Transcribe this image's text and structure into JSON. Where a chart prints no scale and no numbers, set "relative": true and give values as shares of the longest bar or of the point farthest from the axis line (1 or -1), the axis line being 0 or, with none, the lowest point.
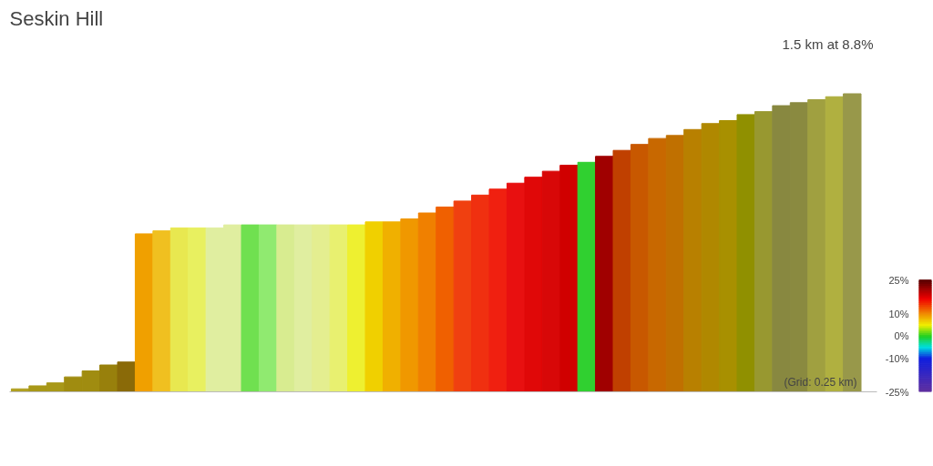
{
  "chart_data": {
    "type": "bar",
    "title": "Seskin Hill",
    "subtitle": "1.5 km at 8.8%",
    "relative": true,
    "categories": [
      null,
      null,
      null,
      null,
      null,
      null,
      null,
      null,
      null,
      null,
      null,
      null,
      null,
      null,
      null,
      null,
      null,
      null,
      null,
      null,
      null,
      null,
      null,
      null,
      null,
      null,
      null,
      null,
      null,
      null,
      null,
      null,
      null,
      null,
      null,
      null,
      null,
      null,
      null,
      null,
      null,
      null,
      null,
      null,
      null,
      null,
      null,
      null
    ],
    "values": [
      0.01,
      0.02,
      0.03,
      0.05,
      0.07,
      0.09,
      0.1,
      0.53,
      0.54,
      0.55,
      0.55,
      0.55,
      0.56,
      0.56,
      0.56,
      0.56,
      0.56,
      0.56,
      0.56,
      0.56,
      0.57,
      0.57,
      0.58,
      0.6,
      0.62,
      0.64,
      0.66,
      0.68,
      0.7,
      0.72,
      0.74,
      0.76,
      0.77,
      0.79,
      0.81,
      0.83,
      0.85,
      0.86,
      0.88,
      0.9,
      0.91,
      0.93,
      0.94,
      0.96,
      0.97,
      0.98,
      0.99,
      1.0
    ],
    "colors": [
      "#b0a020",
      "#a89818",
      "#a89818",
      "#a08c10",
      "#a08c10",
      "#98800c",
      "#8a6a08",
      "#f0a000",
      "#f0c020",
      "#e8e850",
      "#e8f060",
      "#e0eea0",
      "#e0eea0",
      "#70e050",
      "#90ea70",
      "#d8ec90",
      "#e0eea0",
      "#e4ee90",
      "#e8f070",
      "#eef030",
      "#f0d000",
      "#f0b000",
      "#f09800",
      "#f08000",
      "#f06000",
      "#f04010",
      "#f03010",
      "#f02010",
      "#e81010",
      "#e00808",
      "#d80808",
      "#d00000",
      "#30d030",
      "#a00000",
      "#c04000",
      "#c85800",
      "#c86800",
      "#c07000",
      "#b88000",
      "#b08800",
      "#a89000",
      "#909000",
      "#989830",
      "#888840",
      "#8a8a40",
      "#a0a040",
      "#b0b040",
      "#98984a"
    ],
    "clim": [
      -25,
      25
    ],
    "cticks": [
      {
        "value": 25,
        "label": "25%"
      },
      {
        "value": 10,
        "label": "10%"
      },
      {
        "value": 0,
        "label": "0%"
      },
      {
        "value": -10,
        "label": "-10%"
      },
      {
        "value": -25,
        "label": "-25%"
      }
    ],
    "annotations": [
      "(Grid: 0.25 km)"
    ],
    "grid": false
  }
}
